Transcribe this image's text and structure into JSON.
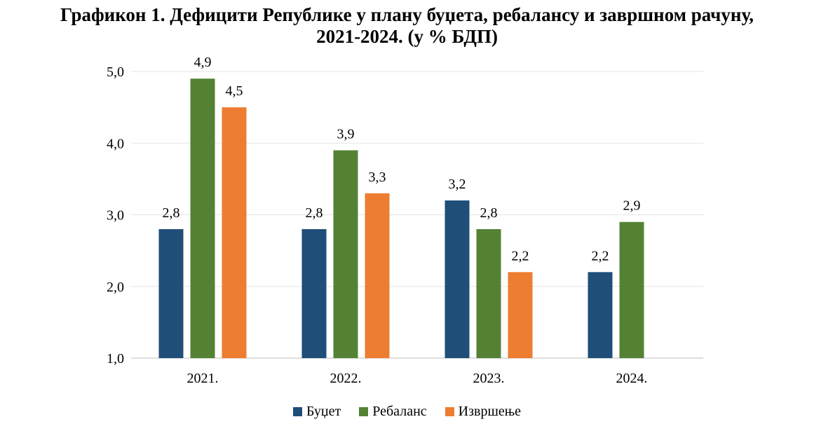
{
  "chart_data": {
    "type": "bar",
    "title_line1": "Графикон 1. Дефицити Републике у плану буџета, ребалансу и завршном рачуну,",
    "title_line2": "2021-2024. (у % БДП)",
    "categories": [
      "2021.",
      "2022.",
      "2023.",
      "2024."
    ],
    "series": [
      {
        "name": "Буџет",
        "color": "#1f4e79",
        "values": [
          2.8,
          2.8,
          3.2,
          2.2
        ],
        "labels": [
          "2,8",
          "2,8",
          "3,2",
          "2,2"
        ]
      },
      {
        "name": "Ребаланс",
        "color": "#548235",
        "values": [
          4.9,
          3.9,
          2.8,
          2.9
        ],
        "labels": [
          "4,9",
          "3,9",
          "2,8",
          "2,9"
        ]
      },
      {
        "name": "Извршење",
        "color": "#ed7d31",
        "values": [
          4.5,
          3.3,
          2.2,
          null
        ],
        "labels": [
          "4,5",
          "3,3",
          "2,2",
          ""
        ]
      }
    ],
    "ylim": [
      1.0,
      5.0
    ],
    "yticks": [
      1.0,
      2.0,
      3.0,
      4.0,
      5.0
    ],
    "ytick_labels": [
      "1,0",
      "2,0",
      "3,0",
      "4,0",
      "5,0"
    ],
    "grid": true,
    "legend_position": "bottom"
  }
}
